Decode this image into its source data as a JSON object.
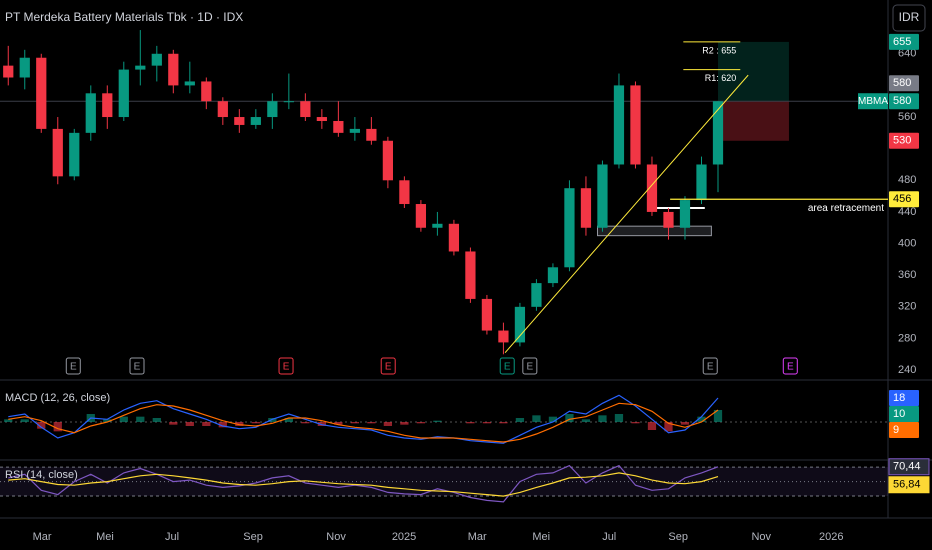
{
  "chart_data": {
    "type": "candlestick",
    "title": "PT Merdeka Battery Materials Tbk · 1D · IDX",
    "currency": "IDR",
    "colors": {
      "up": "#089981",
      "down": "#f23645"
    },
    "open": [
      625,
      610,
      635,
      545,
      485,
      540,
      590,
      560,
      620,
      625,
      640,
      600,
      605,
      580,
      560,
      550,
      560,
      580,
      580,
      560,
      555,
      540,
      545,
      530,
      480,
      450,
      420,
      425,
      390,
      330,
      290,
      275,
      320,
      350,
      370,
      470,
      420,
      500,
      600,
      500,
      440,
      420,
      455,
      500
    ],
    "high": [
      650,
      645,
      640,
      560,
      545,
      600,
      600,
      630,
      670,
      650,
      645,
      630,
      610,
      585,
      570,
      570,
      590,
      615,
      590,
      570,
      580,
      560,
      560,
      535,
      485,
      455,
      440,
      430,
      395,
      335,
      300,
      325,
      355,
      375,
      480,
      485,
      505,
      615,
      605,
      510,
      445,
      460,
      510,
      580
    ],
    "low": [
      600,
      595,
      540,
      475,
      480,
      530,
      545,
      555,
      600,
      605,
      590,
      590,
      570,
      550,
      540,
      545,
      545,
      570,
      555,
      545,
      535,
      530,
      525,
      470,
      445,
      415,
      410,
      385,
      325,
      285,
      260,
      270,
      315,
      345,
      365,
      410,
      415,
      495,
      495,
      435,
      405,
      405,
      450,
      465
    ],
    "close": [
      610,
      635,
      545,
      485,
      540,
      590,
      560,
      620,
      625,
      640,
      600,
      605,
      580,
      560,
      550,
      560,
      580,
      580,
      560,
      555,
      540,
      545,
      530,
      480,
      450,
      420,
      425,
      390,
      330,
      290,
      275,
      320,
      350,
      370,
      470,
      420,
      500,
      600,
      500,
      440,
      420,
      455,
      500,
      580
    ],
    "xlim": [
      -0.5,
      53.3
    ],
    "xticks": [
      {
        "value": 2.05,
        "label": "Mar"
      },
      {
        "value": 5.86,
        "label": "Mei"
      },
      {
        "value": 9.92,
        "label": "Jul"
      },
      {
        "value": 14.83,
        "label": "Sep"
      },
      {
        "value": 19.86,
        "label": "Nov"
      },
      {
        "value": 23.98,
        "label": "2025"
      },
      {
        "value": 28.41,
        "label": "Mar"
      },
      {
        "value": 32.29,
        "label": "Mei"
      },
      {
        "value": 36.41,
        "label": "Jul"
      },
      {
        "value": 40.59,
        "label": "Sep"
      },
      {
        "value": 45.62,
        "label": "Nov"
      },
      {
        "value": 49.86,
        "label": "2026"
      }
    ],
    "ylim": [
      230,
      708
    ],
    "yticks": [
      240,
      280,
      320,
      360,
      400,
      440,
      480,
      560,
      640
    ],
    "symbol": {
      "name": "MBMA",
      "value": 580,
      "color": "#089981"
    },
    "price_tags": [
      {
        "value": 655,
        "color": "#089981"
      },
      {
        "value": 580,
        "color": "#787b86"
      },
      {
        "value": 530,
        "color": "#f23645"
      },
      {
        "value": 456,
        "color": "#ffeb3b"
      }
    ],
    "levels": [
      {
        "label": "R2 : 655",
        "value": 655,
        "x": [
          40.9,
          44.35
        ]
      },
      {
        "label": "R1: 620",
        "value": 620,
        "x": [
          40.9,
          44.35
        ]
      }
    ],
    "retracement": {
      "label": "area retracement",
      "value": 456,
      "x": [
        40.1,
        53.3
      ]
    },
    "position": {
      "x": [
        43.0,
        47.3
      ],
      "entry": 580,
      "target": 655,
      "stop": 530
    },
    "trendline": {
      "x": [
        30.1,
        44.83
      ],
      "y": [
        262,
        613
      ]
    },
    "support_box": {
      "x": [
        35.7,
        42.6
      ],
      "y": [
        410,
        422
      ]
    },
    "support_line": {
      "x": [
        38.9,
        42.2
      ],
      "value": 445
    },
    "events": [
      {
        "x": 3.94,
        "label": "E",
        "color": "#9598a1"
      },
      {
        "x": 7.8,
        "label": "E",
        "color": "#9598a1"
      },
      {
        "x": 16.83,
        "label": "E",
        "color": "#f23645"
      },
      {
        "x": 23.02,
        "label": "E",
        "color": "#f23645"
      },
      {
        "x": 30.23,
        "label": "E",
        "color": "#089981"
      },
      {
        "x": 31.6,
        "label": "E",
        "color": "#9598a1"
      },
      {
        "x": 42.53,
        "label": "E",
        "color": "#9598a1"
      },
      {
        "x": 47.38,
        "label": "E",
        "color": "#e040fb"
      }
    ],
    "macd": {
      "label": "MACD (12, 26, close)",
      "ylim": [
        -27,
        30
      ],
      "macd": [
        4,
        6,
        -4,
        -12,
        -8,
        3,
        2,
        9,
        14,
        16,
        10,
        6,
        2,
        -3,
        -5,
        -4,
        2,
        6,
        2,
        -2,
        -4,
        -5,
        -6,
        -10,
        -12,
        -13,
        -11,
        -12,
        -14,
        -15,
        -16,
        -10,
        -4,
        0,
        8,
        6,
        14,
        20,
        12,
        2,
        -8,
        -6,
        4,
        18
      ],
      "signal": [
        2,
        4,
        1,
        -5,
        -8,
        -3,
        0,
        5,
        10,
        13,
        12,
        9,
        5,
        1,
        -2,
        -3,
        -1,
        3,
        3,
        1,
        -2,
        -4,
        -5,
        -7,
        -10,
        -12,
        -12,
        -12,
        -13,
        -14,
        -15,
        -13,
        -9,
        -4,
        2,
        4,
        9,
        14,
        13,
        8,
        -1,
        -4,
        0,
        9
      ],
      "histogram": [
        2,
        2,
        -5,
        -7,
        0,
        6,
        2,
        4,
        4,
        3,
        -2,
        -3,
        -3,
        -4,
        -3,
        -1,
        3,
        3,
        -1,
        -3,
        -2,
        -1,
        -1,
        -3,
        -2,
        -1,
        1,
        0,
        -1,
        -1,
        -1,
        3,
        5,
        4,
        6,
        2,
        5,
        6,
        -1,
        -6,
        -7,
        -2,
        4,
        9
      ],
      "colors": {
        "macd": "#2962ff",
        "signal": "#ff6d00"
      },
      "tags": [
        {
          "value": 18,
          "color": "#2962ff"
        },
        {
          "value": 10,
          "color": "#089981"
        },
        {
          "value": 9,
          "color": "#ff6d00"
        }
      ]
    },
    "rsi": {
      "label": "RSI (14, close)",
      "ylim": [
        8,
        77
      ],
      "levels": [
        70,
        50,
        30
      ],
      "rsi": [
        55,
        60,
        38,
        32,
        50,
        60,
        48,
        62,
        68,
        60,
        50,
        52,
        45,
        42,
        44,
        48,
        55,
        58,
        48,
        45,
        42,
        45,
        42,
        35,
        33,
        32,
        40,
        35,
        28,
        24,
        22,
        50,
        60,
        62,
        72,
        48,
        62,
        72,
        45,
        38,
        40,
        55,
        62,
        70.44
      ],
      "ma": [
        52,
        54,
        50,
        46,
        45,
        48,
        50,
        54,
        58,
        60,
        58,
        55,
        52,
        48,
        46,
        45,
        47,
        50,
        51,
        49,
        47,
        46,
        45,
        42,
        40,
        38,
        37,
        36,
        34,
        32,
        30,
        35,
        42,
        48,
        55,
        56,
        58,
        62,
        58,
        52,
        48,
        47,
        50,
        56.84
      ],
      "colors": {
        "rsi": "#7e57c2",
        "ma": "#fdd835"
      },
      "tags": [
        {
          "value": 70.44,
          "label": "70,44",
          "color": "#7e57c2"
        },
        {
          "value": 56.84,
          "label": "56,84",
          "color": "#fdd835"
        }
      ]
    }
  }
}
